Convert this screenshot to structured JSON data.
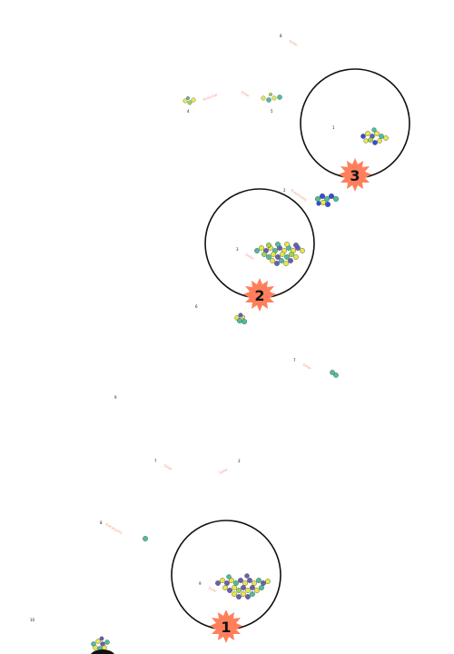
{
  "colors": {
    "ring": "#111111",
    "badge": "#ff7f5c",
    "label": "#f4a28c",
    "mol_yellow": "#e6e84a",
    "mol_teal": "#4dbf9a",
    "mol_blue": "#2f4fd8",
    "mol_purple": "#6a5fb0",
    "mol_green": "#9fd44f"
  },
  "badges": [
    {
      "id": "badge-1",
      "text": "1"
    },
    {
      "id": "badge-2",
      "text": "2"
    },
    {
      "id": "badge-3",
      "text": "3"
    }
  ],
  "clusters": [
    {
      "num": "1",
      "label": "Solar"
    },
    {
      "num": "2",
      "label": "Eukaryotic"
    },
    {
      "num": "3",
      "label": "Solar"
    },
    {
      "num": "4",
      "label": "Antiviral"
    },
    {
      "num": "5",
      "label": "Solar"
    },
    {
      "num": "6",
      "label": ""
    },
    {
      "num": "7",
      "label": "Solar"
    },
    {
      "num": "8",
      "label": "Solar"
    },
    {
      "num": "9",
      "label": "Solar"
    },
    {
      "num": "10",
      "label": ""
    }
  ]
}
